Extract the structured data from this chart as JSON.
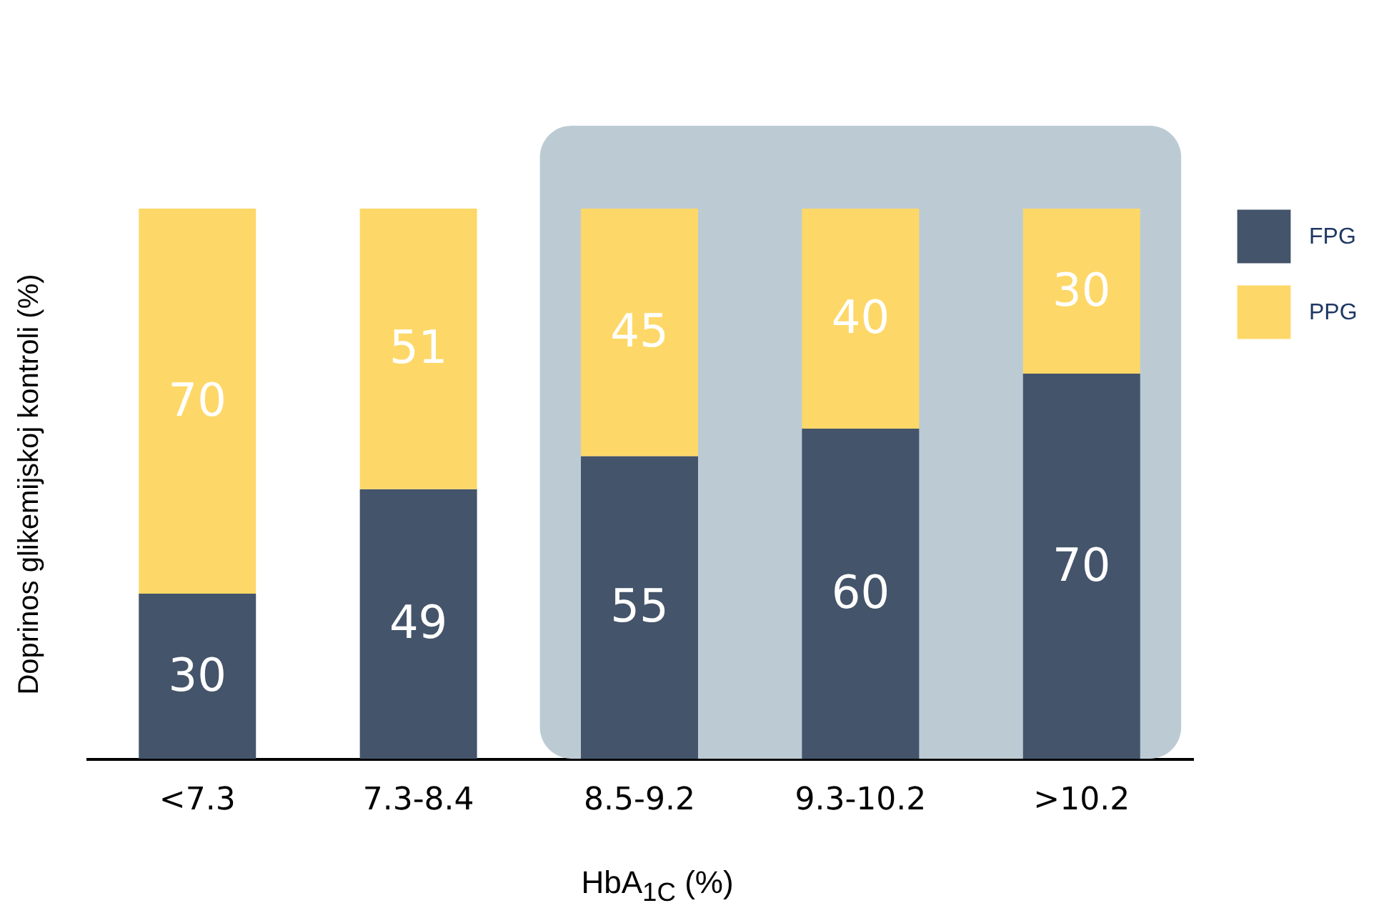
{
  "chart_data": {
    "type": "bar",
    "stacked": true,
    "xlabel": "HbA$_{1C}$ (%)",
    "ylabel": "Doprinos glikemijskoj kontroli (%)",
    "categories": [
      "<7.3",
      "7.3-8.4",
      "8.5-9.2",
      "9.3-10.2",
      ">10.2"
    ],
    "series": [
      {
        "name": "FPG",
        "color": "#44546a",
        "values": [
          30,
          49,
          55,
          60,
          70
        ]
      },
      {
        "name": "PPG",
        "color": "#fdd868",
        "values": [
          70,
          51,
          45,
          40,
          30
        ]
      }
    ],
    "bands": [
      {
        "axis": "x",
        "from": "8.5-9.2",
        "to": ">10.2",
        "color": "#bccbd3"
      }
    ],
    "data_labels": true,
    "legend": "top right",
    "grid": false
  }
}
